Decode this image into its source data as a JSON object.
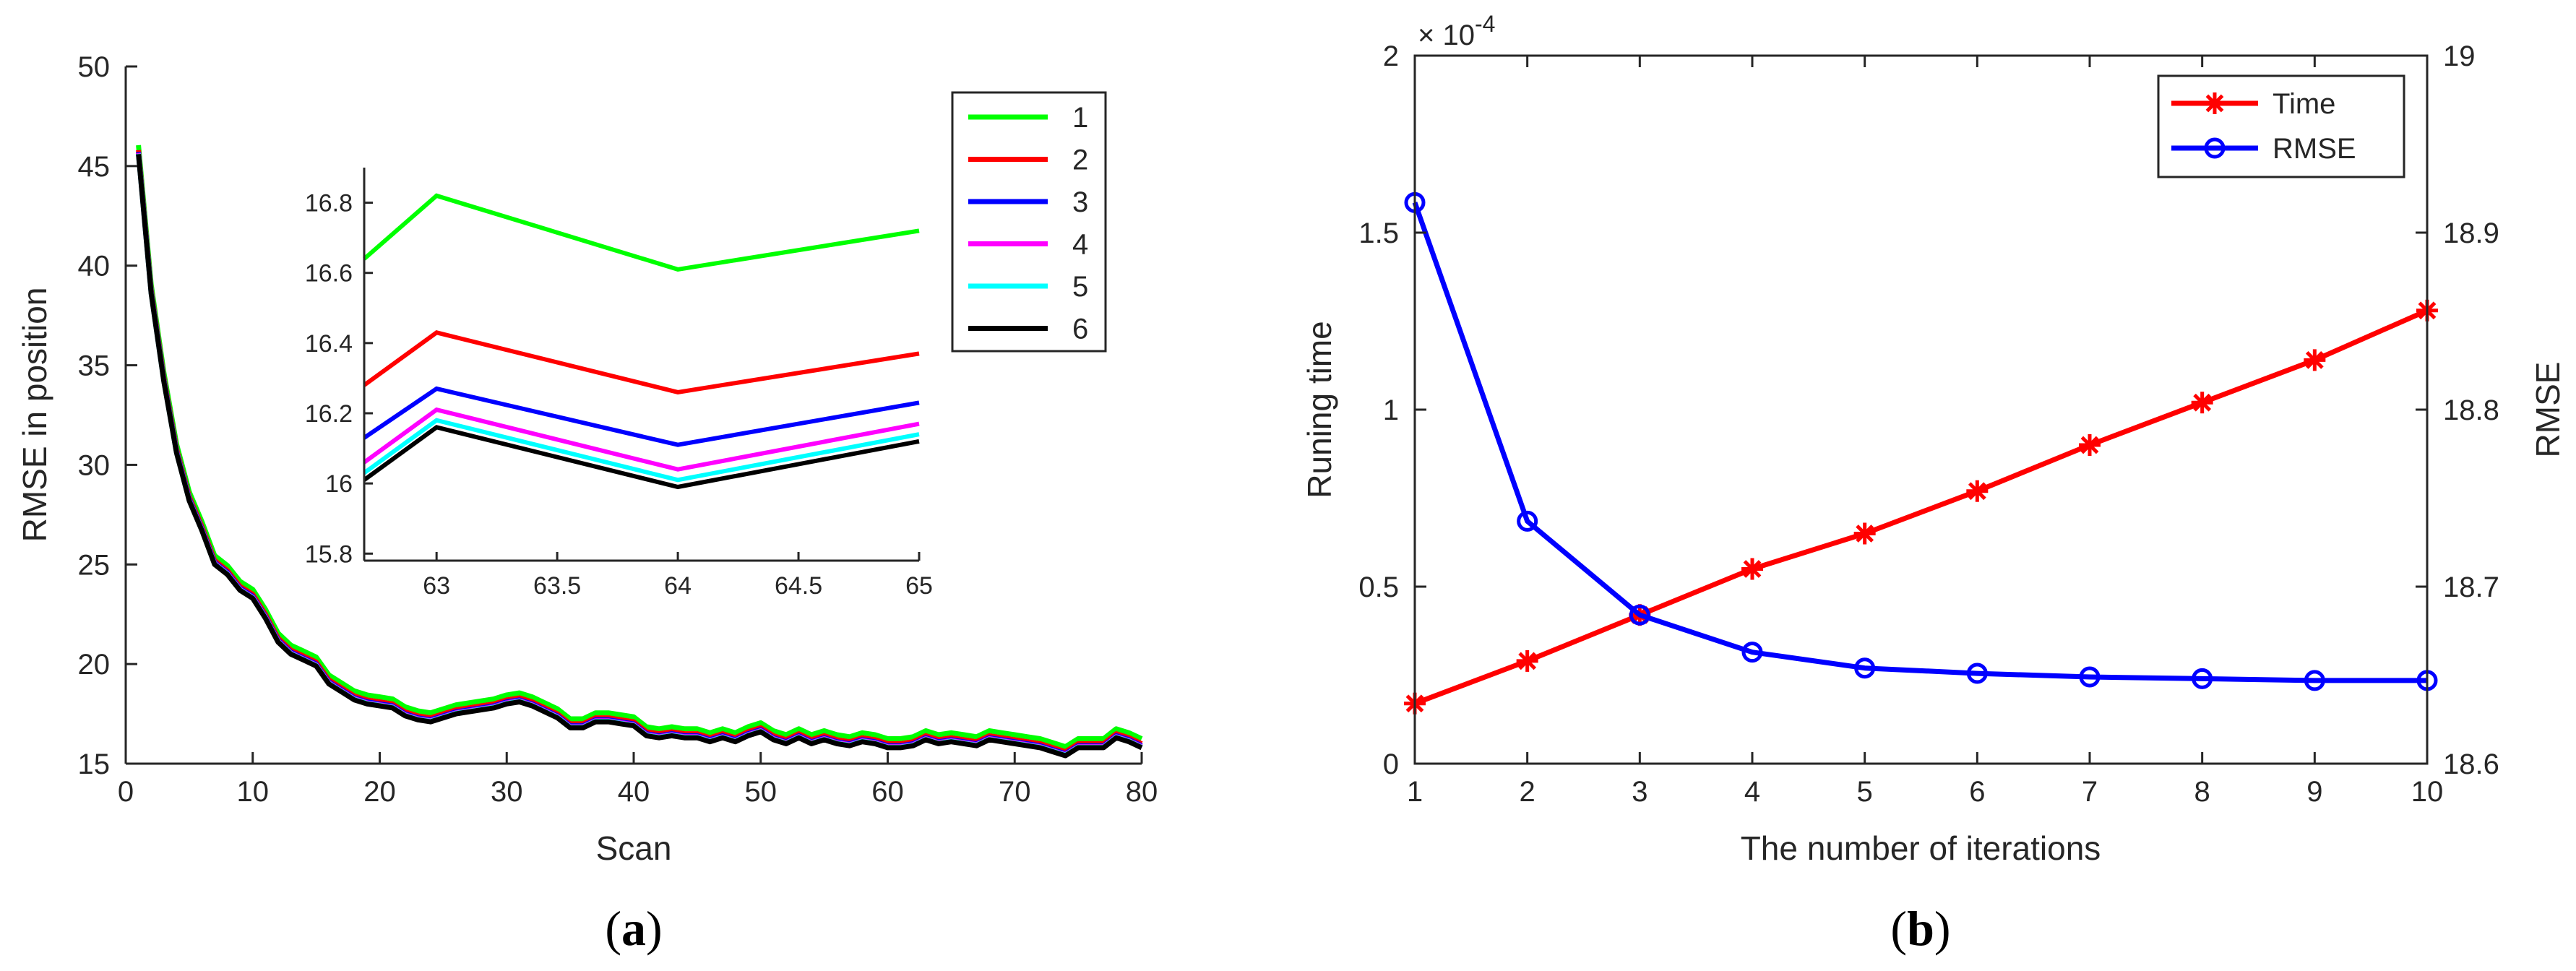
{
  "panels": [
    {
      "label": "(a)",
      "letter": "a"
    },
    {
      "label": "(b)",
      "letter": "b"
    }
  ],
  "chart_data": [
    {
      "type": "line",
      "panel": "a",
      "title": "",
      "xlabel": "Scan",
      "ylabel": "RMSE in position",
      "xlim": [
        0,
        80
      ],
      "ylim": [
        15,
        50
      ],
      "xticks": [
        0,
        10,
        20,
        30,
        40,
        50,
        60,
        70,
        80
      ],
      "yticks": [
        15,
        20,
        25,
        30,
        35,
        40,
        45,
        50
      ],
      "legend": "top-right",
      "colors": [
        "#00ff00",
        "#ff0000",
        "#0000ff",
        "#ff00ff",
        "#00ffff",
        "#000000"
      ],
      "offsets": [
        0.45,
        0.2,
        0.1,
        0.05,
        0.02,
        0.0
      ],
      "series": [
        {
          "name": "1"
        },
        {
          "name": "2"
        },
        {
          "name": "3"
        },
        {
          "name": "4"
        },
        {
          "name": "5"
        },
        {
          "name": "6"
        }
      ],
      "base_x": [
        1,
        2,
        3,
        4,
        5,
        6,
        7,
        8,
        9,
        10,
        11,
        12,
        13,
        14,
        15,
        16,
        17,
        18,
        19,
        20,
        21,
        22,
        23,
        24,
        25,
        26,
        27,
        28,
        29,
        30,
        31,
        32,
        33,
        34,
        35,
        36,
        37,
        38,
        39,
        40,
        41,
        42,
        43,
        44,
        45,
        46,
        47,
        48,
        49,
        50,
        51,
        52,
        53,
        54,
        55,
        56,
        57,
        58,
        59,
        60,
        61,
        62,
        63,
        64,
        65,
        66,
        67,
        68,
        69,
        70,
        71,
        72,
        73,
        74,
        75,
        76,
        77,
        78,
        79,
        80
      ],
      "base_y": [
        45.6,
        38.6,
        34.2,
        30.6,
        28.2,
        26.7,
        25.0,
        24.5,
        23.7,
        23.3,
        22.3,
        21.1,
        20.5,
        20.2,
        19.9,
        19.0,
        18.6,
        18.2,
        18.0,
        17.9,
        17.8,
        17.4,
        17.2,
        17.1,
        17.3,
        17.5,
        17.6,
        17.7,
        17.8,
        18.0,
        18.1,
        17.9,
        17.6,
        17.3,
        16.8,
        16.8,
        17.1,
        17.1,
        17.0,
        16.9,
        16.4,
        16.3,
        16.4,
        16.3,
        16.3,
        16.1,
        16.3,
        16.1,
        16.4,
        16.6,
        16.2,
        16.0,
        16.3,
        16.0,
        16.2,
        16.0,
        15.9,
        16.1,
        16.0,
        15.8,
        15.8,
        15.9,
        16.2,
        16.0,
        16.1,
        16.0,
        15.9,
        16.2,
        16.1,
        16.0,
        15.9,
        15.8,
        15.6,
        15.4,
        15.8,
        15.8,
        15.8,
        16.3,
        16.1,
        15.8
      ],
      "inset": {
        "xlim": [
          62.7,
          65
        ],
        "ylim": [
          15.78,
          16.9
        ],
        "xticks": [
          63,
          63.5,
          64,
          64.5,
          65
        ],
        "yticks": [
          15.8,
          16,
          16.2,
          16.4,
          16.6,
          16.8
        ],
        "x": [
          62.7,
          63,
          64,
          65
        ],
        "series": [
          {
            "name": "1",
            "values": [
              16.64,
              16.82,
              16.61,
              16.72
            ]
          },
          {
            "name": "2",
            "values": [
              16.28,
              16.43,
              16.26,
              16.37
            ]
          },
          {
            "name": "3",
            "values": [
              16.13,
              16.27,
              16.11,
              16.23
            ]
          },
          {
            "name": "4",
            "values": [
              16.06,
              16.21,
              16.04,
              16.17
            ]
          },
          {
            "name": "5",
            "values": [
              16.03,
              16.18,
              16.01,
              16.14
            ]
          },
          {
            "name": "6",
            "values": [
              16.01,
              16.16,
              15.99,
              16.12
            ]
          }
        ]
      }
    },
    {
      "type": "line",
      "panel": "b",
      "title": "",
      "xlabel": "The number of iterations",
      "ylabel": "Runing time",
      "y2label": "RMSE",
      "y_exponent": "× 10^-4",
      "exp_base": "× 10",
      "exp_power": "-4",
      "xlim": [
        1,
        10
      ],
      "ylim": [
        0,
        2
      ],
      "y2lim": [
        18.6,
        19
      ],
      "xticks": [
        1,
        2,
        3,
        4,
        5,
        6,
        7,
        8,
        9,
        10
      ],
      "yticks": [
        0,
        0.5,
        1,
        1.5,
        2
      ],
      "y2ticks": [
        18.6,
        18.7,
        18.8,
        18.9,
        19
      ],
      "legend": "top-right",
      "x": [
        1,
        2,
        3,
        4,
        5,
        6,
        7,
        8,
        9,
        10
      ],
      "series": [
        {
          "name": "Time",
          "axis": "left",
          "color": "#ff0000",
          "marker": "asterisk",
          "values": [
            0.17,
            0.29,
            0.42,
            0.55,
            0.65,
            0.77,
            0.9,
            1.02,
            1.14,
            1.28
          ]
        },
        {
          "name": "RMSE",
          "axis": "right",
          "color": "#0000ff",
          "marker": "circle",
          "values": [
            18.917,
            18.737,
            18.684,
            18.663,
            18.654,
            18.651,
            18.649,
            18.648,
            18.647,
            18.647
          ]
        }
      ]
    }
  ]
}
